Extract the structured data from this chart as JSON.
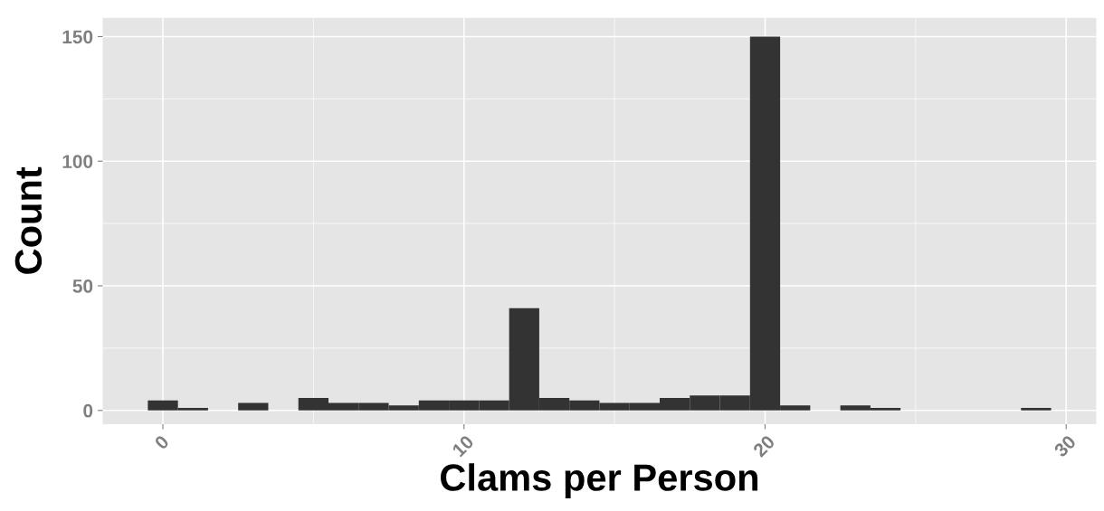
{
  "chart_data": {
    "type": "histogram",
    "xlabel": "Clams per Person",
    "ylabel": "Count",
    "bins": [
      -0.5,
      0.5,
      1.5,
      2.5,
      3.5,
      4.5,
      5.5,
      6.5,
      7.5,
      8.5,
      9.5,
      10.5,
      11.5,
      12.5,
      13.5,
      14.5,
      15.5,
      16.5,
      17.5,
      18.5,
      19.5,
      20.5,
      21.5,
      22.5,
      23.5,
      24.5,
      25.5,
      26.5,
      27.5,
      28.5,
      29.5
    ],
    "values": [
      4,
      1,
      0,
      3,
      0,
      5,
      3,
      3,
      2,
      4,
      4,
      4,
      41,
      5,
      4,
      3,
      3,
      5,
      6,
      6,
      150,
      2,
      0,
      2,
      1,
      0,
      0,
      0,
      0,
      1
    ],
    "color": "#333333",
    "xlim": [
      -2,
      31
    ],
    "xticks": [
      0,
      10,
      20,
      30
    ],
    "ylim": [
      -5.5,
      157.5
    ],
    "yticks": [
      0,
      50,
      100,
      150
    ],
    "grid": true
  }
}
